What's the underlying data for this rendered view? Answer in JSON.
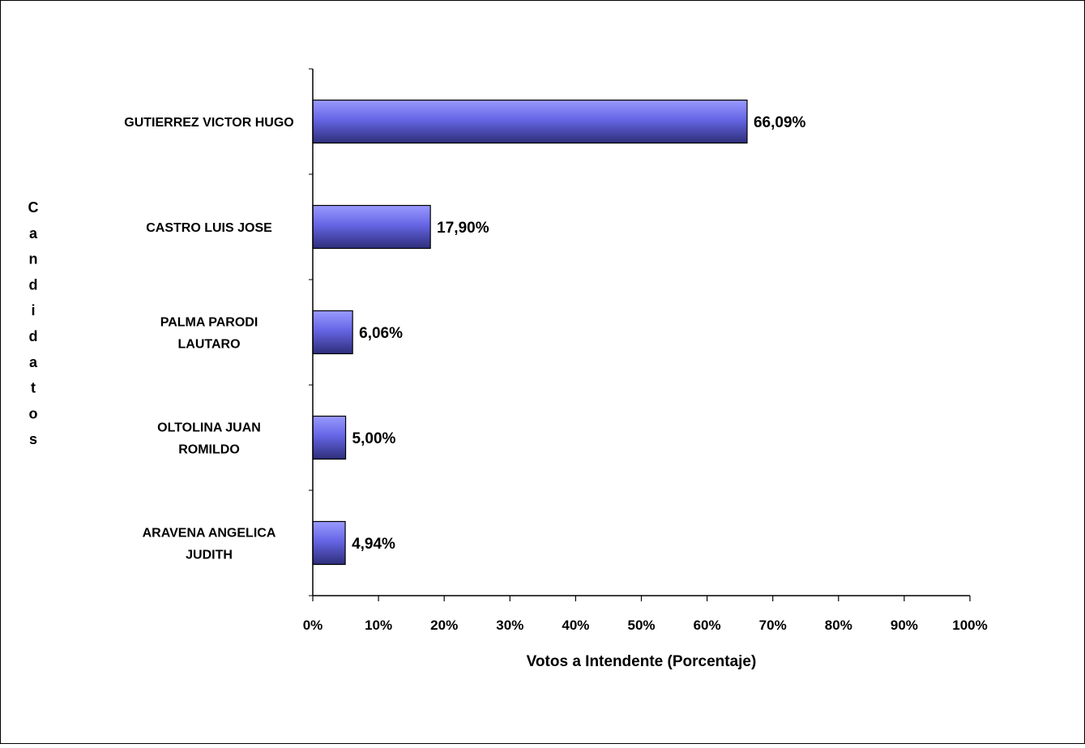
{
  "chart_data": {
    "type": "bar",
    "orientation": "horizontal",
    "categories": [
      [
        "GUTIERREZ  VICTOR HUGO"
      ],
      [
        "CASTRO  LUIS JOSE"
      ],
      [
        "PALMA PARODI",
        "LAUTARO"
      ],
      [
        "OLTOLINA  JUAN",
        "ROMILDO"
      ],
      [
        "ARAVENA  ANGELICA",
        "JUDITH"
      ]
    ],
    "values": [
      66.09,
      17.9,
      6.06,
      5.0,
      4.94
    ],
    "value_labels": [
      "66,09%",
      "17,90%",
      "6,06%",
      "5,00%",
      "4,94%"
    ],
    "xlabel": "Votos a Intendente (Porcentaje)",
    "ylabel": "Candidatos",
    "xlim": [
      0,
      100
    ],
    "x_ticks": [
      0,
      10,
      20,
      30,
      40,
      50,
      60,
      70,
      80,
      90,
      100
    ],
    "x_tick_labels": [
      "0%",
      "10%",
      "20%",
      "30%",
      "40%",
      "50%",
      "60%",
      "70%",
      "80%",
      "90%",
      "100%"
    ],
    "grid": false,
    "legend": "none",
    "colors": {
      "bar_light": "#9A9AFF",
      "bar_mid": "#6666E6",
      "bar_dark": "#2E2E7A",
      "bar_stroke": "#000000",
      "frame": "#000000"
    }
  }
}
